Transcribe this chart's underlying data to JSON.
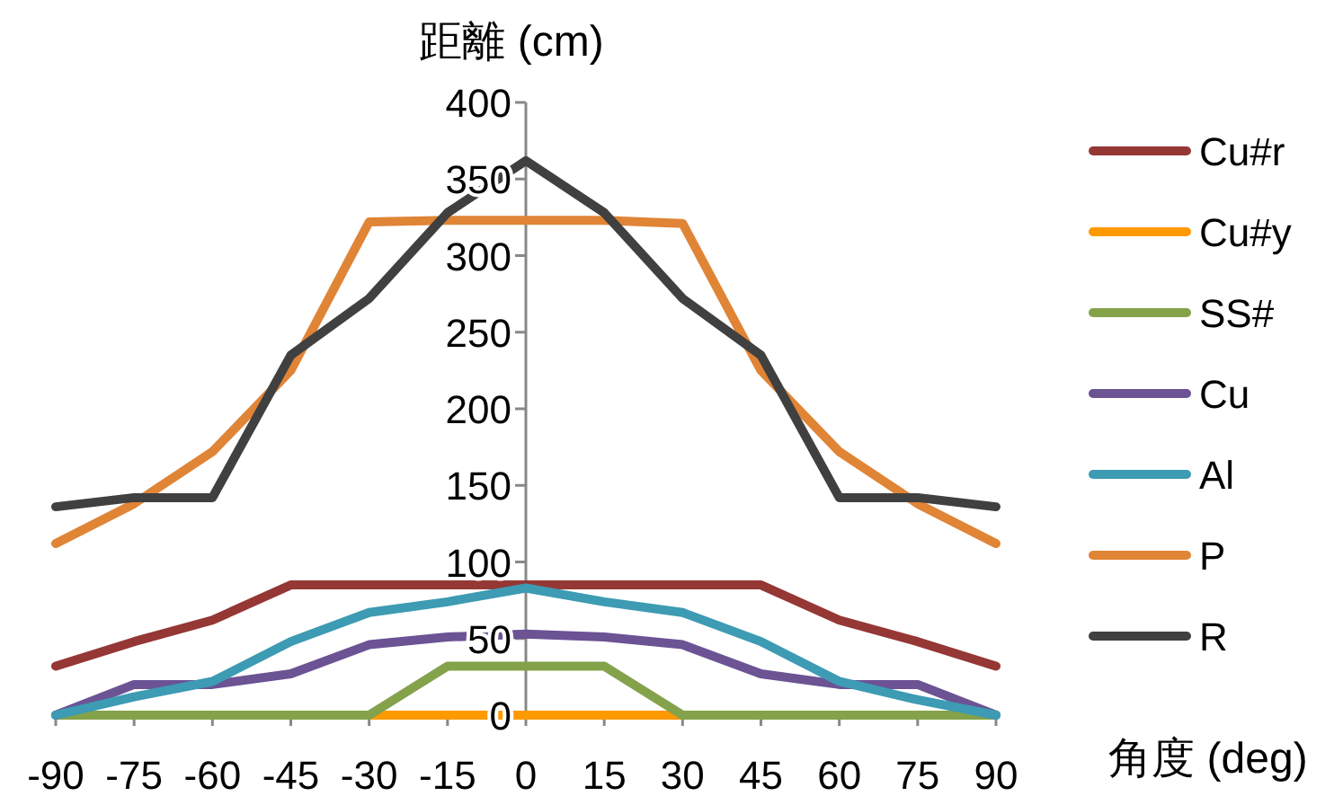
{
  "chart_data": {
    "type": "line",
    "ylabel": "距離 (cm)",
    "xlabel": "角度 (deg)",
    "x": [
      -90,
      -75,
      -60,
      -45,
      -30,
      -15,
      0,
      15,
      30,
      45,
      60,
      75,
      90
    ],
    "xlim": [
      -90,
      90
    ],
    "ylim": [
      0,
      400
    ],
    "xticks": [
      -90,
      -75,
      -60,
      -45,
      -30,
      -15,
      0,
      15,
      30,
      45,
      60,
      75,
      90
    ],
    "yticks": [
      0,
      50,
      100,
      150,
      200,
      250,
      300,
      350,
      400
    ],
    "legend": "right",
    "marker": "none",
    "line_style": "solid",
    "series": [
      {
        "name": "Cu#r",
        "color": "#953735",
        "values": [
          32,
          48,
          62,
          85,
          85,
          85,
          85,
          85,
          85,
          85,
          62,
          48,
          32
        ]
      },
      {
        "name": "Cu#y",
        "color": "#ff9900",
        "values": [
          null,
          null,
          null,
          null,
          0,
          0,
          0,
          0,
          0,
          null,
          null,
          null,
          null
        ]
      },
      {
        "name": "SS#",
        "color": "#84a24a",
        "values": [
          0,
          0,
          0,
          0,
          0,
          32,
          32,
          32,
          0,
          0,
          0,
          0,
          0
        ]
      },
      {
        "name": "Cu",
        "color": "#6b5394",
        "values": [
          0,
          20,
          20,
          27,
          46,
          51,
          53,
          51,
          46,
          27,
          20,
          20,
          0
        ]
      },
      {
        "name": "Al",
        "color": "#3d9bb3",
        "values": [
          0,
          12,
          22,
          48,
          67,
          74,
          83,
          74,
          67,
          48,
          22,
          10,
          0
        ]
      },
      {
        "name": "P",
        "color": "#e08436",
        "values": [
          112,
          138,
          172,
          225,
          322,
          323,
          323,
          323,
          321,
          225,
          172,
          138,
          112
        ]
      },
      {
        "name": "R",
        "color": "#404040",
        "values": [
          136,
          142,
          142,
          235,
          272,
          328,
          362,
          328,
          272,
          235,
          142,
          142,
          136
        ]
      }
    ]
  }
}
